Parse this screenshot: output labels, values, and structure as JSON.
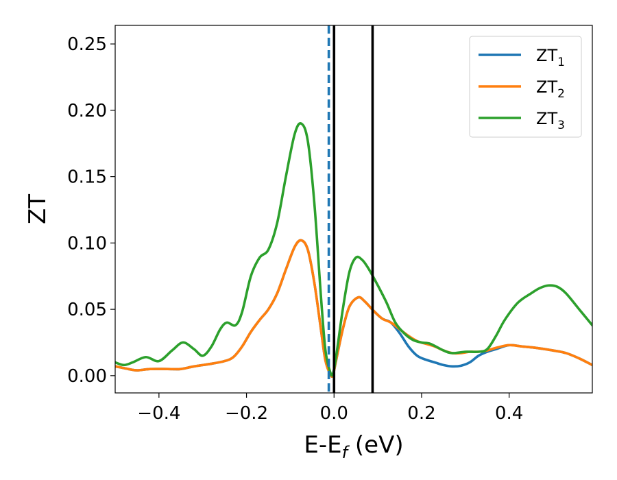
{
  "chart_data": {
    "type": "line",
    "xlabel": "E-E",
    "xlabel_sub": "f",
    "xlabel_unit": " (eV)",
    "ylabel": "ZT",
    "xlim": [
      -0.5,
      0.59
    ],
    "ylim": [
      -0.013,
      0.264
    ],
    "grid": false,
    "legend_position": "top-right",
    "x_ticks": [
      -0.4,
      -0.2,
      0.0,
      0.2,
      0.4
    ],
    "x_tick_labels": [
      "−0.4",
      "−0.2",
      "0.0",
      "0.2",
      "0.4"
    ],
    "y_ticks": [
      0.0,
      0.05,
      0.1,
      0.15,
      0.2,
      0.25
    ],
    "y_tick_labels": [
      "0.00",
      "0.05",
      "0.10",
      "0.15",
      "0.20",
      "0.25"
    ],
    "vertical_lines": [
      {
        "x": -0.012,
        "style": "dashed",
        "color": "#1f77b4"
      },
      {
        "x": 0.0,
        "style": "solid",
        "color": "#000000"
      },
      {
        "x": 0.088,
        "style": "solid",
        "color": "#000000"
      }
    ],
    "series": [
      {
        "name": "ZT",
        "name_sub": "1",
        "color": "#1f77b4",
        "points": [
          [
            -0.5,
            0.007
          ],
          [
            -0.47,
            0.005
          ],
          [
            -0.45,
            0.004
          ],
          [
            -0.42,
            0.005
          ],
          [
            -0.38,
            0.005
          ],
          [
            -0.35,
            0.005
          ],
          [
            -0.32,
            0.007
          ],
          [
            -0.28,
            0.009
          ],
          [
            -0.25,
            0.011
          ],
          [
            -0.23,
            0.014
          ],
          [
            -0.21,
            0.022
          ],
          [
            -0.19,
            0.033
          ],
          [
            -0.17,
            0.042
          ],
          [
            -0.15,
            0.05
          ],
          [
            -0.13,
            0.062
          ],
          [
            -0.11,
            0.08
          ],
          [
            -0.09,
            0.097
          ],
          [
            -0.075,
            0.102
          ],
          [
            -0.06,
            0.095
          ],
          [
            -0.045,
            0.07
          ],
          [
            -0.03,
            0.035
          ],
          [
            -0.02,
            0.012
          ],
          [
            -0.01,
            0.002
          ],
          [
            -0.003,
            0.0
          ],
          [
            0.005,
            0.012
          ],
          [
            0.02,
            0.035
          ],
          [
            0.035,
            0.052
          ],
          [
            0.055,
            0.059
          ],
          [
            0.07,
            0.056
          ],
          [
            0.09,
            0.049
          ],
          [
            0.11,
            0.043
          ],
          [
            0.13,
            0.04
          ],
          [
            0.15,
            0.032
          ],
          [
            0.17,
            0.022
          ],
          [
            0.19,
            0.015
          ],
          [
            0.21,
            0.012
          ],
          [
            0.23,
            0.01
          ],
          [
            0.25,
            0.008
          ],
          [
            0.27,
            0.007
          ],
          [
            0.29,
            0.0075
          ],
          [
            0.31,
            0.01
          ],
          [
            0.33,
            0.015
          ],
          [
            0.35,
            0.018
          ],
          [
            0.37,
            0.02
          ],
          [
            0.4,
            0.023
          ],
          [
            0.43,
            0.022
          ],
          [
            0.46,
            0.021
          ],
          [
            0.5,
            0.019
          ],
          [
            0.53,
            0.017
          ],
          [
            0.56,
            0.013
          ],
          [
            0.59,
            0.008
          ]
        ]
      },
      {
        "name": "ZT",
        "name_sub": "2",
        "color": "#ff7f0e",
        "points": [
          [
            -0.5,
            0.007
          ],
          [
            -0.47,
            0.005
          ],
          [
            -0.45,
            0.004
          ],
          [
            -0.42,
            0.005
          ],
          [
            -0.38,
            0.005
          ],
          [
            -0.35,
            0.005
          ],
          [
            -0.32,
            0.007
          ],
          [
            -0.28,
            0.009
          ],
          [
            -0.25,
            0.011
          ],
          [
            -0.23,
            0.014
          ],
          [
            -0.21,
            0.022
          ],
          [
            -0.19,
            0.033
          ],
          [
            -0.17,
            0.042
          ],
          [
            -0.15,
            0.05
          ],
          [
            -0.13,
            0.062
          ],
          [
            -0.11,
            0.08
          ],
          [
            -0.09,
            0.097
          ],
          [
            -0.075,
            0.102
          ],
          [
            -0.06,
            0.095
          ],
          [
            -0.045,
            0.07
          ],
          [
            -0.03,
            0.035
          ],
          [
            -0.02,
            0.012
          ],
          [
            -0.01,
            0.002
          ],
          [
            -0.003,
            0.0
          ],
          [
            0.005,
            0.012
          ],
          [
            0.02,
            0.035
          ],
          [
            0.035,
            0.052
          ],
          [
            0.055,
            0.059
          ],
          [
            0.07,
            0.056
          ],
          [
            0.09,
            0.049
          ],
          [
            0.11,
            0.043
          ],
          [
            0.13,
            0.04
          ],
          [
            0.15,
            0.035
          ],
          [
            0.17,
            0.03
          ],
          [
            0.19,
            0.026
          ],
          [
            0.21,
            0.024
          ],
          [
            0.23,
            0.022
          ],
          [
            0.25,
            0.019
          ],
          [
            0.27,
            0.017
          ],
          [
            0.29,
            0.017
          ],
          [
            0.31,
            0.018
          ],
          [
            0.33,
            0.018
          ],
          [
            0.35,
            0.019
          ],
          [
            0.37,
            0.021
          ],
          [
            0.4,
            0.023
          ],
          [
            0.43,
            0.022
          ],
          [
            0.46,
            0.021
          ],
          [
            0.5,
            0.019
          ],
          [
            0.53,
            0.017
          ],
          [
            0.56,
            0.013
          ],
          [
            0.59,
            0.008
          ]
        ]
      },
      {
        "name": "ZT",
        "name_sub": "3",
        "color": "#2ca02c",
        "points": [
          [
            -0.5,
            0.01
          ],
          [
            -0.48,
            0.008
          ],
          [
            -0.46,
            0.01
          ],
          [
            -0.43,
            0.014
          ],
          [
            -0.4,
            0.011
          ],
          [
            -0.37,
            0.019
          ],
          [
            -0.345,
            0.025
          ],
          [
            -0.32,
            0.02
          ],
          [
            -0.3,
            0.015
          ],
          [
            -0.28,
            0.022
          ],
          [
            -0.26,
            0.035
          ],
          [
            -0.245,
            0.04
          ],
          [
            -0.225,
            0.038
          ],
          [
            -0.21,
            0.048
          ],
          [
            -0.19,
            0.075
          ],
          [
            -0.17,
            0.089
          ],
          [
            -0.15,
            0.095
          ],
          [
            -0.13,
            0.115
          ],
          [
            -0.11,
            0.15
          ],
          [
            -0.09,
            0.182
          ],
          [
            -0.075,
            0.19
          ],
          [
            -0.06,
            0.177
          ],
          [
            -0.045,
            0.13
          ],
          [
            -0.03,
            0.06
          ],
          [
            -0.02,
            0.02
          ],
          [
            -0.01,
            0.004
          ],
          [
            -0.003,
            0.001
          ],
          [
            0.005,
            0.015
          ],
          [
            0.02,
            0.05
          ],
          [
            0.035,
            0.078
          ],
          [
            0.05,
            0.089
          ],
          [
            0.065,
            0.087
          ],
          [
            0.08,
            0.08
          ],
          [
            0.1,
            0.068
          ],
          [
            0.12,
            0.055
          ],
          [
            0.14,
            0.04
          ],
          [
            0.16,
            0.032
          ],
          [
            0.18,
            0.027
          ],
          [
            0.2,
            0.025
          ],
          [
            0.22,
            0.024
          ],
          [
            0.25,
            0.019
          ],
          [
            0.27,
            0.017
          ],
          [
            0.3,
            0.018
          ],
          [
            0.33,
            0.018
          ],
          [
            0.35,
            0.02
          ],
          [
            0.37,
            0.03
          ],
          [
            0.39,
            0.042
          ],
          [
            0.42,
            0.055
          ],
          [
            0.45,
            0.062
          ],
          [
            0.47,
            0.066
          ],
          [
            0.49,
            0.068
          ],
          [
            0.51,
            0.067
          ],
          [
            0.53,
            0.062
          ],
          [
            0.56,
            0.05
          ],
          [
            0.59,
            0.038
          ]
        ]
      }
    ]
  }
}
